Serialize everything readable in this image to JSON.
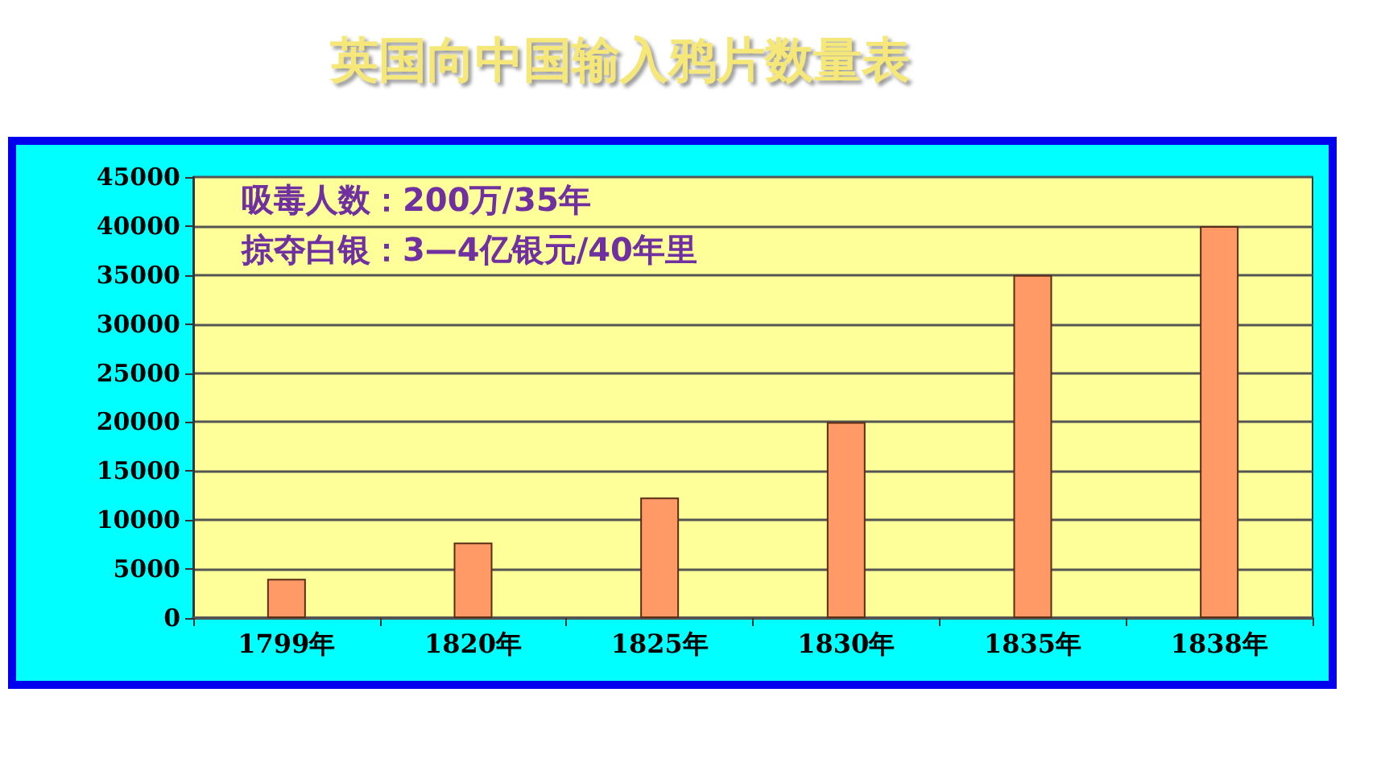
{
  "chart_data": {
    "type": "bar",
    "title": "英国向中国输入鸦片数量表",
    "categories": [
      "1799年",
      "1820年",
      "1825年",
      "1830年",
      "1835年",
      "1838年"
    ],
    "values": [
      4000,
      7700,
      12300,
      20000,
      35000,
      40000
    ],
    "color": "#ff9966",
    "ylim": [
      0,
      45000
    ],
    "yticks": [
      0,
      5000,
      10000,
      15000,
      20000,
      25000,
      30000,
      35000,
      40000,
      45000
    ],
    "grid": "y",
    "annotations": [
      "吸毒人数：200万/35年",
      "掠夺白银：3—4亿银元/40年里"
    ]
  }
}
